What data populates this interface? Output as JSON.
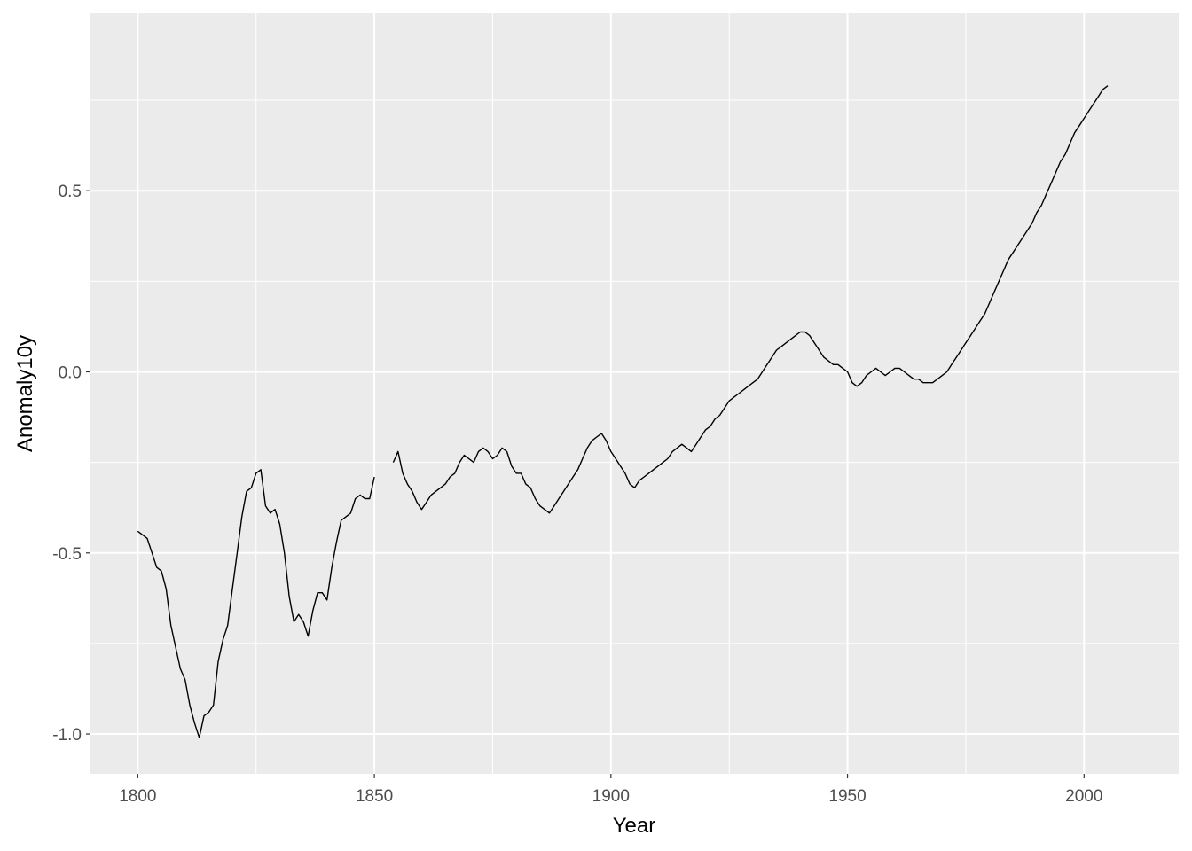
{
  "chart_data": {
    "type": "line",
    "title": "",
    "xlabel": "Year",
    "ylabel": "Anomaly10y",
    "xlim": [
      1790,
      2020
    ],
    "ylim": [
      -1.11,
      0.99
    ],
    "x_major_ticks": [
      1800,
      1850,
      1900,
      1950,
      2000
    ],
    "x_tick_labels": [
      "1800",
      "1850",
      "1900",
      "1950",
      "2000"
    ],
    "x_minor_ticks": [
      1825,
      1875,
      1925,
      1975
    ],
    "y_major_ticks": [
      -1.0,
      -0.5,
      0.0,
      0.5
    ],
    "y_tick_labels": [
      "-1.0",
      "-0.5",
      "0.0",
      "0.5"
    ],
    "y_minor_ticks": [
      -0.75,
      -0.25,
      0.25,
      0.75
    ],
    "grid": true,
    "panel_background": "#ebebeb",
    "grid_color": "#ffffff",
    "line_color": "#000000",
    "series": [
      {
        "x": [
          1800,
          1801,
          1802,
          1803,
          1804,
          1805,
          1806,
          1807,
          1808,
          1809,
          1810,
          1811,
          1812,
          1813,
          1814,
          1815,
          1816,
          1817,
          1818,
          1819,
          1820,
          1821,
          1822,
          1823,
          1824,
          1825,
          1826,
          1827,
          1828,
          1829,
          1830,
          1831,
          1832,
          1833,
          1834,
          1835,
          1836,
          1837,
          1838,
          1839,
          1840,
          1841,
          1842,
          1843,
          1844,
          1845,
          1846,
          1847,
          1848,
          1849,
          1850
        ],
        "y": [
          -0.44,
          -0.45,
          -0.46,
          -0.5,
          -0.54,
          -0.55,
          -0.6,
          -0.7,
          -0.76,
          -0.82,
          -0.85,
          -0.92,
          -0.97,
          -1.01,
          -0.95,
          -0.94,
          -0.92,
          -0.8,
          -0.74,
          -0.7,
          -0.6,
          -0.5,
          -0.4,
          -0.33,
          -0.32,
          -0.28,
          -0.27,
          -0.37,
          -0.39,
          -0.38,
          -0.42,
          -0.5,
          -0.62,
          -0.69,
          -0.67,
          -0.69,
          -0.73,
          -0.66,
          -0.61,
          -0.61,
          -0.63,
          -0.54,
          -0.47,
          -0.41,
          -0.4,
          -0.39,
          -0.35,
          -0.34,
          -0.35,
          -0.35,
          -0.29
        ]
      },
      {
        "x": [
          1854,
          1855,
          1856,
          1857,
          1858,
          1859,
          1860,
          1861,
          1862,
          1863,
          1864,
          1865,
          1866,
          1867,
          1868,
          1869,
          1870,
          1871,
          1872,
          1873,
          1874,
          1875,
          1876,
          1877,
          1878,
          1879,
          1880,
          1881,
          1882,
          1883,
          1884,
          1885,
          1886,
          1887,
          1888,
          1889,
          1890,
          1891,
          1892,
          1893,
          1894,
          1895,
          1896,
          1897,
          1898,
          1899,
          1900,
          1901,
          1902,
          1903,
          1904,
          1905,
          1906,
          1907,
          1908,
          1909,
          1910,
          1911,
          1912,
          1913,
          1914,
          1915,
          1916,
          1917,
          1918,
          1919,
          1920,
          1921,
          1922,
          1923,
          1924,
          1925,
          1926,
          1927,
          1928,
          1929,
          1930,
          1931,
          1932,
          1933,
          1934,
          1935,
          1936,
          1937,
          1938,
          1939,
          1940,
          1941,
          1942,
          1943,
          1944,
          1945,
          1946,
          1947,
          1948,
          1949,
          1950,
          1951,
          1952,
          1953,
          1954,
          1955,
          1956,
          1957,
          1958,
          1959,
          1960,
          1961,
          1962,
          1963,
          1964,
          1965,
          1966,
          1967,
          1968,
          1969,
          1970,
          1971,
          1972,
          1973,
          1974,
          1975,
          1976,
          1977,
          1978,
          1979,
          1980,
          1981,
          1982,
          1983,
          1984,
          1985,
          1986,
          1987,
          1988,
          1989,
          1990,
          1991,
          1992,
          1993,
          1994,
          1995,
          1996,
          1997,
          1998,
          1999,
          2000,
          2001,
          2002,
          2003,
          2004,
          2005
        ],
        "y": [
          -0.25,
          -0.22,
          -0.28,
          -0.31,
          -0.33,
          -0.36,
          -0.38,
          -0.36,
          -0.34,
          -0.33,
          -0.32,
          -0.31,
          -0.29,
          -0.28,
          -0.25,
          -0.23,
          -0.24,
          -0.25,
          -0.22,
          -0.21,
          -0.22,
          -0.24,
          -0.23,
          -0.21,
          -0.22,
          -0.26,
          -0.28,
          -0.28,
          -0.31,
          -0.32,
          -0.35,
          -0.37,
          -0.38,
          -0.39,
          -0.37,
          -0.35,
          -0.33,
          -0.31,
          -0.29,
          -0.27,
          -0.24,
          -0.21,
          -0.19,
          -0.18,
          -0.17,
          -0.19,
          -0.22,
          -0.24,
          -0.26,
          -0.28,
          -0.31,
          -0.32,
          -0.3,
          -0.29,
          -0.28,
          -0.27,
          -0.26,
          -0.25,
          -0.24,
          -0.22,
          -0.21,
          -0.2,
          -0.21,
          -0.22,
          -0.2,
          -0.18,
          -0.16,
          -0.15,
          -0.13,
          -0.12,
          -0.1,
          -0.08,
          -0.07,
          -0.06,
          -0.05,
          -0.04,
          -0.03,
          -0.02,
          0.0,
          0.02,
          0.04,
          0.06,
          0.07,
          0.08,
          0.09,
          0.1,
          0.11,
          0.11,
          0.1,
          0.08,
          0.06,
          0.04,
          0.03,
          0.02,
          0.02,
          0.01,
          0.0,
          -0.03,
          -0.04,
          -0.03,
          -0.01,
          0.0,
          0.01,
          0.0,
          -0.01,
          0.0,
          0.01,
          0.01,
          0.0,
          -0.01,
          -0.02,
          -0.02,
          -0.03,
          -0.03,
          -0.03,
          -0.02,
          -0.01,
          0.0,
          0.02,
          0.04,
          0.06,
          0.08,
          0.1,
          0.12,
          0.14,
          0.16,
          0.19,
          0.22,
          0.25,
          0.28,
          0.31,
          0.33,
          0.35,
          0.37,
          0.39,
          0.41,
          0.44,
          0.46,
          0.49,
          0.52,
          0.55,
          0.58,
          0.6,
          0.63,
          0.66,
          0.68,
          0.7,
          0.72,
          0.74,
          0.76,
          0.78,
          0.79
        ]
      }
    ]
  }
}
